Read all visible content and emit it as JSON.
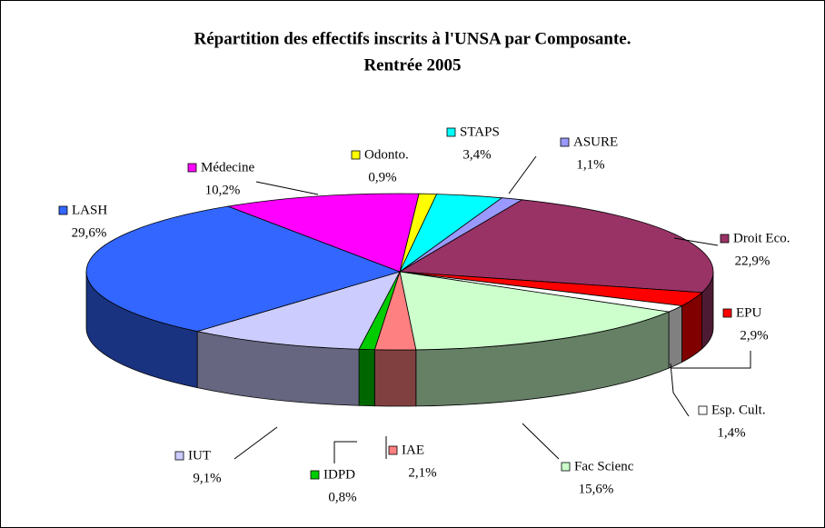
{
  "chart_data": {
    "type": "pie3d",
    "title": "Répartition des effectifs inscrits à l'UNSA par Composante.",
    "subtitle": "Rentrée 2005",
    "categories": [
      "ASURE",
      "Droit Eco.",
      "EPU",
      "Esp. Cult.",
      "Fac Scienc",
      "IAE",
      "IDPD",
      "IUT",
      "LASH",
      "Médecine",
      "Odonto.",
      "STAPS"
    ],
    "values": [
      1.1,
      22.9,
      2.9,
      1.4,
      15.6,
      2.1,
      0.8,
      9.1,
      29.6,
      10.2,
      0.9,
      3.4
    ],
    "value_labels": [
      "1,1%",
      "22,9%",
      "2,9%",
      "1,4%",
      "15,6%",
      "2,1%",
      "0,8%",
      "9,1%",
      "29,6%",
      "10,2%",
      "0,9%",
      "3,4%"
    ],
    "colors": [
      "#9999ff",
      "#993366",
      "#ff0000",
      "#ffffff",
      "#ccffcc",
      "#ff8080",
      "#00cc00",
      "#ccccff",
      "#3366ff",
      "#ff00ff",
      "#ffff00",
      "#00ffff"
    ]
  }
}
